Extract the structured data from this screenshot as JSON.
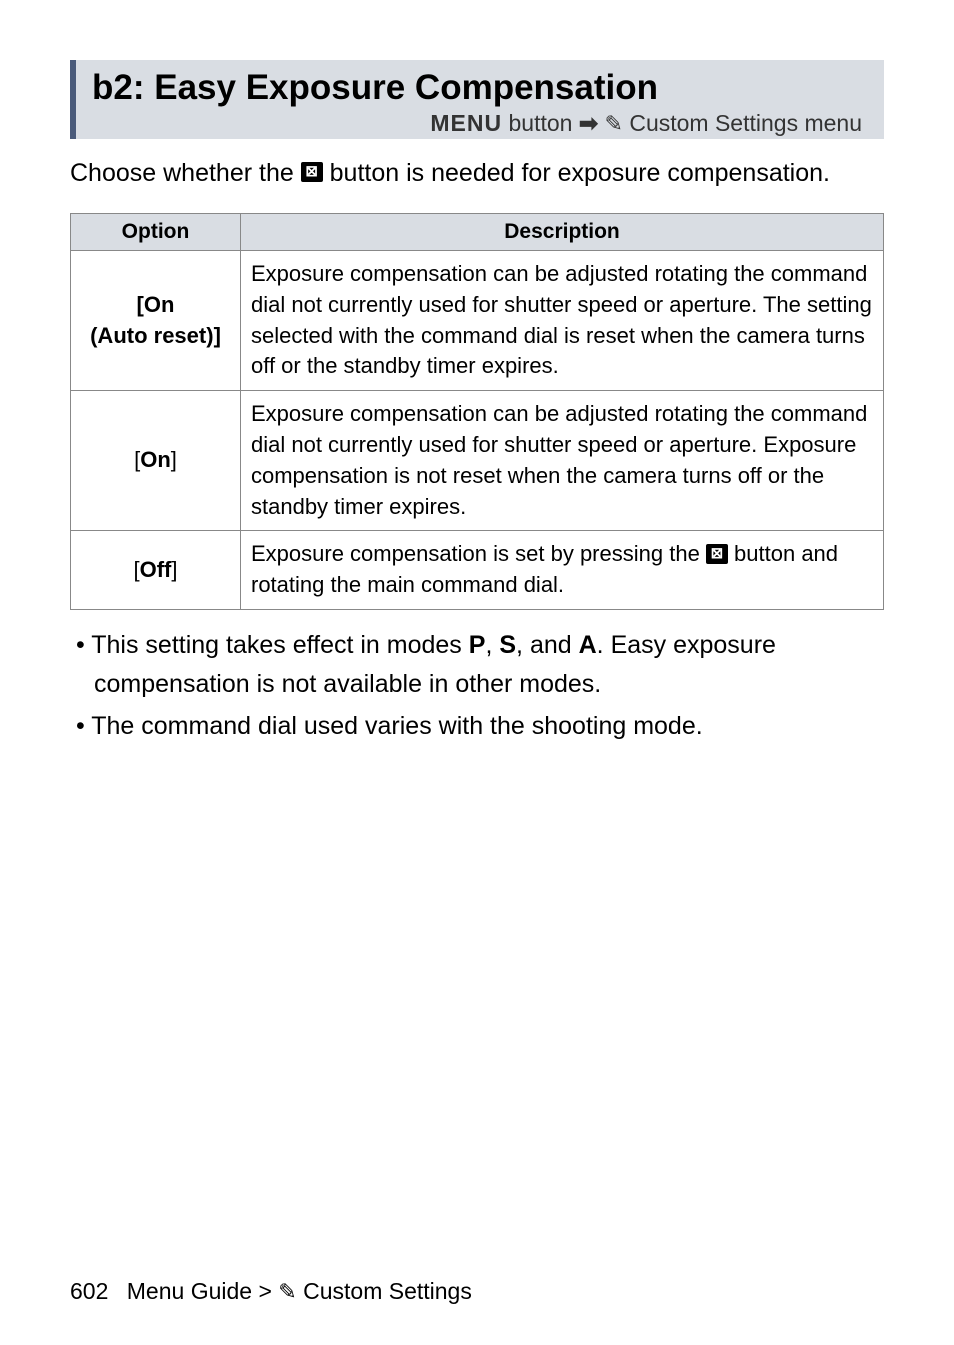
{
  "title_bar": {
    "heading": "b2: Easy Exposure Compensation",
    "breadcrumb_menu": "MENU",
    "breadcrumb_button": " button ",
    "breadcrumb_arrow": "➡",
    "breadcrumb_pencil": "✎",
    "breadcrumb_target": " Custom Settings menu"
  },
  "intro": {
    "before_icon": "Choose whether the ",
    "icon_text": "⊠",
    "after_icon": " button is needed for exposure compensation."
  },
  "table": {
    "headers": {
      "option": "Option",
      "description": "Description"
    },
    "rows": [
      {
        "option_line1": "[On",
        "option_line2": "(Auto reset)]",
        "description": "Exposure compensation can be adjusted rotating the command dial not currently used for shutter speed or aperture. The setting selected with the command dial is reset when the camera turns off or the standby timer expires."
      },
      {
        "option_line1": "[On]",
        "option_line2": "",
        "description": "Exposure compensation can be adjusted rotating the command dial not currently used for shutter speed or aperture. Exposure compensation is not reset when the camera turns off or the standby timer expires."
      },
      {
        "option_line1": "[Off]",
        "option_line2": "",
        "desc_before": "Exposure compensation is set by pressing the ",
        "desc_icon": "⊠",
        "desc_after": " button and rotating the main command dial."
      }
    ]
  },
  "bullets": {
    "item1_before": "This setting takes effect in modes ",
    "item1_p": "P",
    "item1_sep1": ", ",
    "item1_s": "S",
    "item1_sep2": ", and ",
    "item1_a": "A",
    "item1_after": ". Easy exposure compensation is not available in other modes.",
    "item2": "The command dial used varies with the shooting mode."
  },
  "footer": {
    "page_number": "602",
    "guide_before": "Menu Guide > ",
    "pencil": "✎",
    "guide_after": " Custom Settings"
  }
}
